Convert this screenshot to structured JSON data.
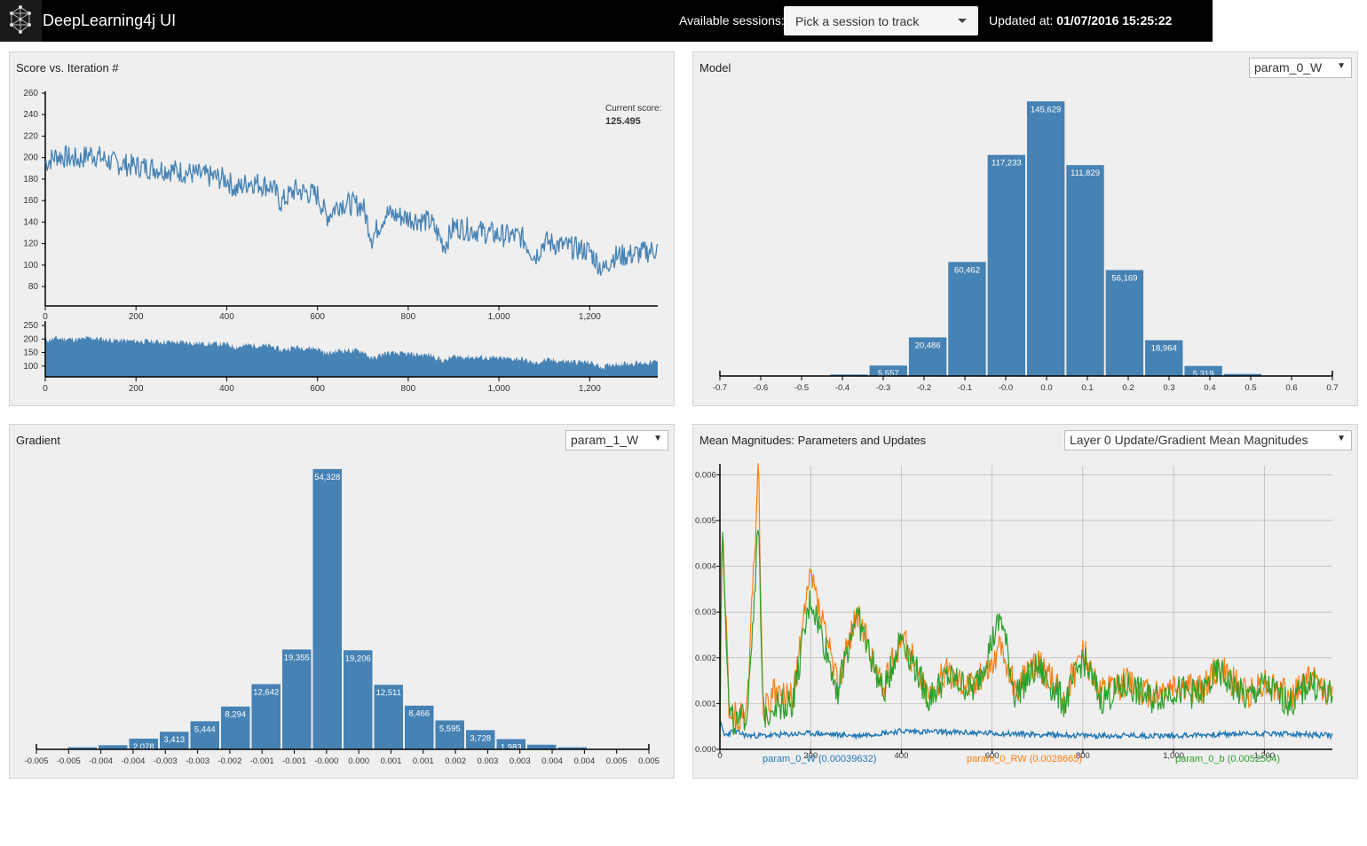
{
  "app": {
    "title": "DeepLearning4j UI"
  },
  "header": {
    "sessions_label": "Available sessions:",
    "session_select": "Pick a session to track",
    "updated_label": "Updated at:",
    "updated_value": "01/07/2016 15:25:22"
  },
  "colors": {
    "bar": "#4682b4",
    "series_w": "#1f77b4",
    "series_rw": "#ff7f0e",
    "series_b": "#2ca02c"
  },
  "panels": {
    "score": {
      "title": "Score vs. Iteration #",
      "current_label": "Current score:",
      "current_value": "125.495"
    },
    "model": {
      "title": "Model",
      "select": "param_0_W"
    },
    "gradient": {
      "title": "Gradient",
      "select": "param_1_W"
    },
    "magnitudes": {
      "title": "Mean Magnitudes: Parameters and Updates",
      "select": "Layer 0 Update/Gradient Mean Magnitudes"
    }
  },
  "chart_data": [
    {
      "id": "score",
      "type": "line",
      "title": "Score vs. Iteration #",
      "xlim": [
        0,
        1350
      ],
      "ylim": [
        62,
        260
      ],
      "x_ticks": [
        "0",
        "200",
        "400",
        "600",
        "800",
        "1,000",
        "1,200"
      ],
      "y_ticks": [
        "260",
        "240",
        "220",
        "200",
        "180",
        "160",
        "140",
        "120",
        "100",
        "80"
      ],
      "x": [
        0,
        25,
        50,
        75,
        100,
        150,
        200,
        250,
        300,
        350,
        400,
        420,
        450,
        500,
        520,
        550,
        600,
        620,
        650,
        700,
        720,
        750,
        800,
        850,
        880,
        900,
        950,
        1000,
        1050,
        1080,
        1100,
        1150,
        1200,
        1230,
        1250,
        1300,
        1350
      ],
      "y": [
        195,
        202,
        200,
        198,
        204,
        195,
        192,
        190,
        187,
        183,
        180,
        170,
        178,
        173,
        158,
        170,
        165,
        145,
        158,
        155,
        125,
        148,
        144,
        140,
        118,
        136,
        132,
        128,
        126,
        108,
        122,
        117,
        113,
        95,
        108,
        110,
        115
      ],
      "current_score": 125.495,
      "context": {
        "x_ticks": [
          "0",
          "200",
          "400",
          "600",
          "800",
          "1,000",
          "1,200"
        ],
        "y_ticks": [
          "250",
          "200",
          "150",
          "100"
        ],
        "ylim": [
          60,
          260
        ]
      }
    },
    {
      "id": "model",
      "type": "bar",
      "title": "Model",
      "x_ticks": [
        "-0.7",
        "-0.6",
        "-0.5",
        "-0.4",
        "-0.3",
        "-0.2",
        "-0.1",
        "-0.0",
        "0.0",
        "0.1",
        "0.2",
        "0.3",
        "0.4",
        "0.5",
        "0.6",
        "0.7"
      ],
      "bins": [
        {
          "x0": -0.45,
          "x1": -0.36,
          "value": 800,
          "label": ""
        },
        {
          "x0": -0.36,
          "x1": -0.27,
          "value": 5557,
          "label": "5,557"
        },
        {
          "x0": -0.27,
          "x1": -0.18,
          "value": 20486,
          "label": "20,486"
        },
        {
          "x0": -0.18,
          "x1": -0.09,
          "value": 60462,
          "label": "60,462"
        },
        {
          "x0": -0.09,
          "x1": -0.0,
          "value": 117233,
          "label": "117,233"
        },
        {
          "x0": -0.0,
          "x1": 0.09,
          "value": 145629,
          "label": "145,629"
        },
        {
          "x0": 0.09,
          "x1": 0.18,
          "value": 111829,
          "label": "111,829"
        },
        {
          "x0": 0.18,
          "x1": 0.27,
          "value": 56169,
          "label": "56,169"
        },
        {
          "x0": 0.27,
          "x1": 0.36,
          "value": 18964,
          "label": "18,964"
        },
        {
          "x0": 0.36,
          "x1": 0.45,
          "value": 5319,
          "label": "5,319"
        },
        {
          "x0": 0.45,
          "x1": 0.54,
          "value": 1100,
          "label": ""
        }
      ],
      "ylim": [
        0,
        150000
      ]
    },
    {
      "id": "gradient",
      "type": "bar",
      "title": "Gradient",
      "x_ticks": [
        "-0.005",
        "-0.005",
        "-0.004",
        "-0.004",
        "-0.003",
        "-0.003",
        "-0.002",
        "-0.001",
        "-0.001",
        "-0.000",
        "0.000",
        "0.001",
        "0.001",
        "0.002",
        "0.003",
        "0.003",
        "0.004",
        "0.004",
        "0.005",
        "0.005"
      ],
      "bins": [
        {
          "value": 0,
          "label": ""
        },
        {
          "value": 400,
          "label": ""
        },
        {
          "value": 800,
          "label": ""
        },
        {
          "value": 2078,
          "label": "2,078"
        },
        {
          "value": 3413,
          "label": "3,413"
        },
        {
          "value": 5444,
          "label": "5,444"
        },
        {
          "value": 8294,
          "label": "8,294"
        },
        {
          "value": 12642,
          "label": "12,642"
        },
        {
          "value": 19355,
          "label": "19,355"
        },
        {
          "value": 54328,
          "label": "54,328"
        },
        {
          "value": 19206,
          "label": "19,206"
        },
        {
          "value": 12511,
          "label": "12,511"
        },
        {
          "value": 8466,
          "label": "8,466"
        },
        {
          "value": 5595,
          "label": "5,595"
        },
        {
          "value": 3728,
          "label": "3,728"
        },
        {
          "value": 1983,
          "label": "1,983"
        },
        {
          "value": 900,
          "label": ""
        },
        {
          "value": 400,
          "label": ""
        },
        {
          "value": 0,
          "label": ""
        },
        {
          "value": 0,
          "label": ""
        }
      ],
      "ylim": [
        0,
        55000
      ]
    },
    {
      "id": "magnitudes",
      "type": "line",
      "title": "Mean Magnitudes: Parameters and Updates",
      "xlim": [
        0,
        1350
      ],
      "ylim": [
        0,
        0.0062
      ],
      "x_ticks": [
        "0",
        "200",
        "400",
        "600",
        "800",
        "1,000",
        "1,200"
      ],
      "y_ticks": [
        "0.006",
        "0.005",
        "0.004",
        "0.003",
        "0.002",
        "0.001",
        "0.000"
      ],
      "grid": true,
      "legend_position": "bottom",
      "series": [
        {
          "name": "param_0_W",
          "legend": "param_0_W (0.00039632)",
          "x": [
            0,
            10,
            30,
            60,
            100,
            200,
            300,
            400,
            600,
            800,
            1000,
            1200,
            1350
          ],
          "y": [
            0.0006,
            0.0003,
            0.0004,
            0.0003,
            0.0003,
            0.00035,
            0.0003,
            0.0004,
            0.00035,
            0.0003,
            0.0003,
            0.00035,
            0.0003
          ]
        },
        {
          "name": "param_0_RW",
          "legend": "param_0_RW (0.0028665)",
          "x": [
            0,
            5,
            20,
            40,
            60,
            85,
            95,
            120,
            160,
            200,
            260,
            300,
            360,
            400,
            460,
            500,
            560,
            620,
            650,
            700,
            760,
            800,
            840,
            900,
            950,
            1000,
            1060,
            1100,
            1160,
            1200,
            1260,
            1300,
            1350
          ],
          "y": [
            0.0003,
            0.005,
            0.0009,
            0.0006,
            0.0009,
            0.0062,
            0.0008,
            0.0012,
            0.0011,
            0.0038,
            0.0014,
            0.003,
            0.0013,
            0.0025,
            0.0012,
            0.0017,
            0.0014,
            0.0022,
            0.0013,
            0.0019,
            0.0011,
            0.0022,
            0.0012,
            0.0015,
            0.0012,
            0.0014,
            0.0013,
            0.0018,
            0.0012,
            0.0015,
            0.0011,
            0.0016,
            0.0012
          ]
        },
        {
          "name": "param_0_b",
          "legend": "param_0_b (0.0052504)",
          "x": [
            0,
            5,
            20,
            40,
            60,
            85,
            95,
            120,
            160,
            200,
            260,
            300,
            360,
            400,
            460,
            500,
            560,
            620,
            650,
            700,
            760,
            800,
            840,
            900,
            950,
            1000,
            1060,
            1100,
            1160,
            1200,
            1260,
            1300,
            1350
          ],
          "y": [
            0.0002,
            0.0052,
            0.0008,
            0.0005,
            0.0008,
            0.0049,
            0.0007,
            0.001,
            0.001,
            0.0033,
            0.0013,
            0.003,
            0.0012,
            0.0025,
            0.0011,
            0.0016,
            0.0013,
            0.0029,
            0.0012,
            0.0018,
            0.001,
            0.002,
            0.0011,
            0.0014,
            0.0011,
            0.0013,
            0.0012,
            0.0017,
            0.0011,
            0.0014,
            0.001,
            0.0015,
            0.0011
          ]
        }
      ]
    }
  ]
}
